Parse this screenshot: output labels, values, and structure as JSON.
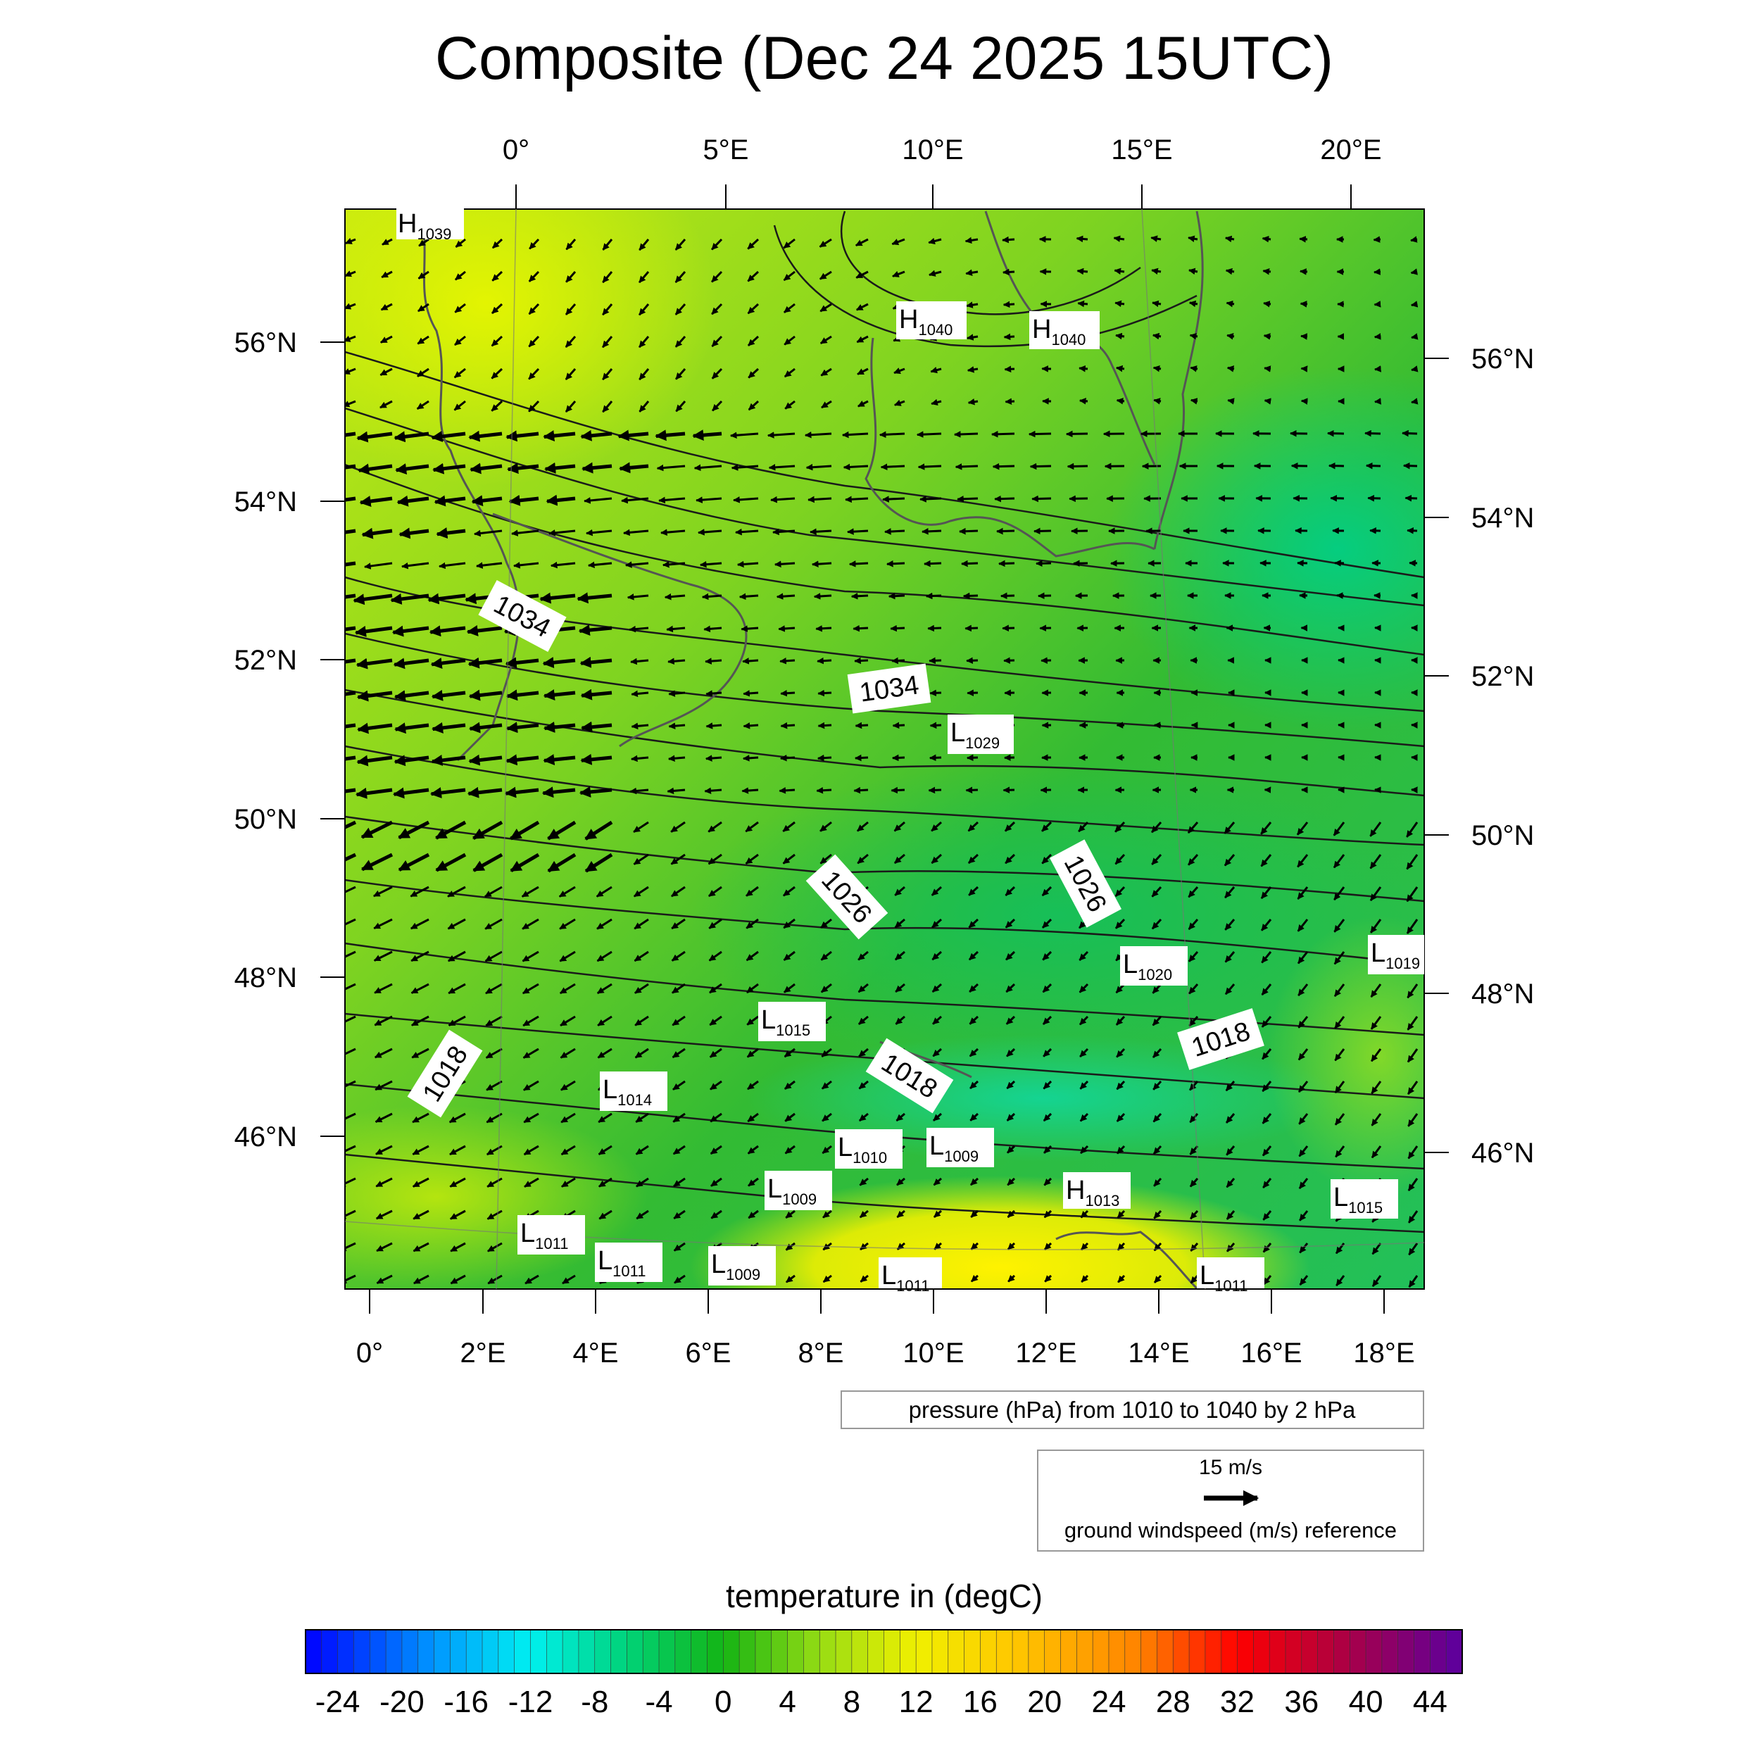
{
  "title": "Composite (Dec 24 2025 15UTC)",
  "top_ticks": [
    "0°",
    "5°E",
    "10°E",
    "15°E",
    "20°E"
  ],
  "bottom_ticks": [
    "0°",
    "2°E",
    "4°E",
    "6°E",
    "8°E",
    "10°E",
    "12°E",
    "14°E",
    "16°E",
    "18°E"
  ],
  "left_ticks": [
    "56°N",
    "54°N",
    "52°N",
    "50°N",
    "48°N",
    "46°N"
  ],
  "right_ticks": [
    "56°N",
    "54°N",
    "52°N",
    "50°N",
    "48°N",
    "46°N"
  ],
  "contour_labels": [
    {
      "text": "1034",
      "rot": 28
    },
    {
      "text": "1034",
      "rot": -8
    },
    {
      "text": "1026",
      "rot": 48
    },
    {
      "text": "1026",
      "rot": 62
    },
    {
      "text": "1018",
      "rot": -58
    },
    {
      "text": "1018",
      "rot": 32
    },
    {
      "text": "1018",
      "rot": -18
    }
  ],
  "centers": [
    {
      "type": "H",
      "value": "1039"
    },
    {
      "type": "H",
      "value": "1040"
    },
    {
      "type": "H",
      "value": "1040"
    },
    {
      "type": "L",
      "value": "1029"
    },
    {
      "type": "L",
      "value": "1020"
    },
    {
      "type": "L",
      "value": "1019"
    },
    {
      "type": "L",
      "value": "1015"
    },
    {
      "type": "L",
      "value": "1014"
    },
    {
      "type": "L",
      "value": "1010"
    },
    {
      "type": "L",
      "value": "1009"
    },
    {
      "type": "L",
      "value": "1009"
    },
    {
      "type": "H",
      "value": "1013"
    },
    {
      "type": "L",
      "value": "1015"
    },
    {
      "type": "L",
      "value": "1011"
    },
    {
      "type": "L",
      "value": "1011"
    },
    {
      "type": "L",
      "value": "1009"
    },
    {
      "type": "L",
      "value": "1011"
    },
    {
      "type": "L",
      "value": "1011"
    }
  ],
  "pressure_legend": "pressure (hPa) from 1010 to 1040 by 2 hPa",
  "wind_legend": {
    "speed": "15 m/s",
    "label": "ground windspeed (m/s) reference"
  },
  "colorbar": {
    "title": "temperature in (degC)",
    "ticks": [
      "-24",
      "-20",
      "-16",
      "-12",
      "-8",
      "-4",
      "0",
      "4",
      "8",
      "12",
      "16",
      "20",
      "24",
      "28",
      "32",
      "36",
      "40",
      "44"
    ],
    "min": -26,
    "max": 46,
    "step": 1
  }
}
